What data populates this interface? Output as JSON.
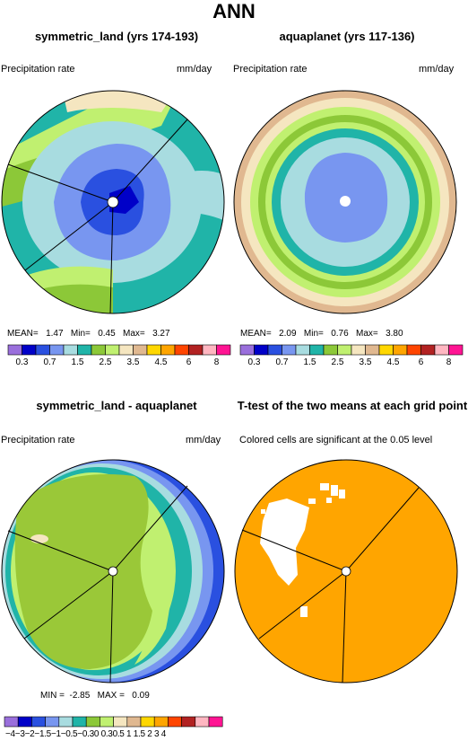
{
  "figure": {
    "title": "ANN"
  },
  "panels": [
    {
      "title": "symmetric_land (yrs 174-193)",
      "variable": "Precipitation rate",
      "units": "mm/day",
      "stats": {
        "mean_label": "MEAN=",
        "mean": "1.47",
        "min_label": "Min=",
        "min": "0.45",
        "max_label": "Max=",
        "max": "3.27"
      }
    },
    {
      "title": "aquaplanet (yrs 117-136)",
      "variable": "Precipitation rate",
      "units": "mm/day",
      "stats": {
        "mean_label": "MEAN=",
        "mean": "2.09",
        "min_label": "Min=",
        "min": "0.76",
        "max_label": "Max=",
        "max": "3.80"
      }
    },
    {
      "title": "symmetric_land - aquaplanet",
      "variable": "Precipitation rate",
      "units": "mm/day",
      "stats": {
        "min_label": "MIN =",
        "min": "-2.85",
        "max_label": "MAX =",
        "max": "0.09"
      }
    },
    {
      "title": "T-test of the two means at each grid point",
      "note": "Colored cells are significant at the 0.05 level"
    }
  ],
  "chart_data": [
    {
      "type": "heatmap",
      "projection": "polar-stereographic",
      "title": "symmetric_land (yrs 174-193)",
      "variable": "Precipitation rate",
      "units": "mm/day",
      "mean": 1.47,
      "min": 0.45,
      "max": 3.27,
      "colorbar_levels": [
        "0.3",
        "0.7",
        "1.5",
        "2.5",
        "3.5",
        "4.5",
        "6",
        "8"
      ],
      "colorbar_colors": [
        "#9a6fdc",
        "#0000c8",
        "#2a50e0",
        "#7896f0",
        "#a8dce0",
        "#20b4a8",
        "#8cc838",
        "#c0f070",
        "#f5e6c0",
        "#e0b890",
        "#ffd700",
        "#ffa500",
        "#ff4500",
        "#b22222",
        "#ffb6c1",
        "#ff1493"
      ]
    },
    {
      "type": "heatmap",
      "projection": "polar-stereographic",
      "title": "aquaplanet (yrs 117-136)",
      "variable": "Precipitation rate",
      "units": "mm/day",
      "mean": 2.09,
      "min": 0.76,
      "max": 3.8,
      "colorbar_levels": [
        "0.3",
        "0.7",
        "1.5",
        "2.5",
        "3.5",
        "4.5",
        "6",
        "8"
      ],
      "colorbar_colors": [
        "#9a6fdc",
        "#0000c8",
        "#2a50e0",
        "#7896f0",
        "#a8dce0",
        "#20b4a8",
        "#8cc838",
        "#c0f070",
        "#f5e6c0",
        "#e0b890",
        "#ffd700",
        "#ffa500",
        "#ff4500",
        "#b22222",
        "#ffb6c1",
        "#ff1493"
      ]
    },
    {
      "type": "heatmap",
      "projection": "polar-stereographic",
      "title": "symmetric_land - aquaplanet",
      "variable": "Precipitation rate",
      "units": "mm/day",
      "min": -2.85,
      "max": 0.09,
      "colorbar_levels": [
        "-4",
        "-3",
        "-2",
        "-1.5",
        "-1",
        "-0.5",
        "-0.3",
        "0",
        "0.3",
        "0.5",
        "1",
        "1.5",
        "2",
        "3",
        "4"
      ],
      "colorbar_tick_text": "−4−3−2−1.5−1−0.5−0.30 0.30.5 1 1.5 2  3  4",
      "colorbar_colors": [
        "#9a6fdc",
        "#0000c8",
        "#2a50e0",
        "#7896f0",
        "#a8dce0",
        "#20b4a8",
        "#8cc838",
        "#c0f070",
        "#f5e6c0",
        "#e0b890",
        "#ffd700",
        "#ffa500",
        "#ff4500",
        "#b22222",
        "#ffb6c1",
        "#ff1493"
      ]
    },
    {
      "type": "heatmap",
      "projection": "polar-stereographic",
      "title": "T-test of the two means at each grid point",
      "significance_level": 0.05,
      "significant_color": "#ffa500",
      "not_significant_color": "#ffffff"
    }
  ],
  "colors": {
    "purple": "#9a6fdc",
    "navy": "#0000c8",
    "blue": "#2a50e0",
    "cornflower": "#7896f0",
    "lightcyan": "#a8dce0",
    "teal": "#20b4a8",
    "green": "#8cc838",
    "lightgreen": "#c0f070",
    "cream": "#f5e6c0",
    "tan": "#e0b890",
    "gold": "#ffd700",
    "orange": "#ffa500",
    "red": "#ff4500",
    "darkred": "#b22222",
    "pink": "#ffb6c1",
    "magenta": "#ff1493",
    "diffgreen": "#9ac838"
  }
}
